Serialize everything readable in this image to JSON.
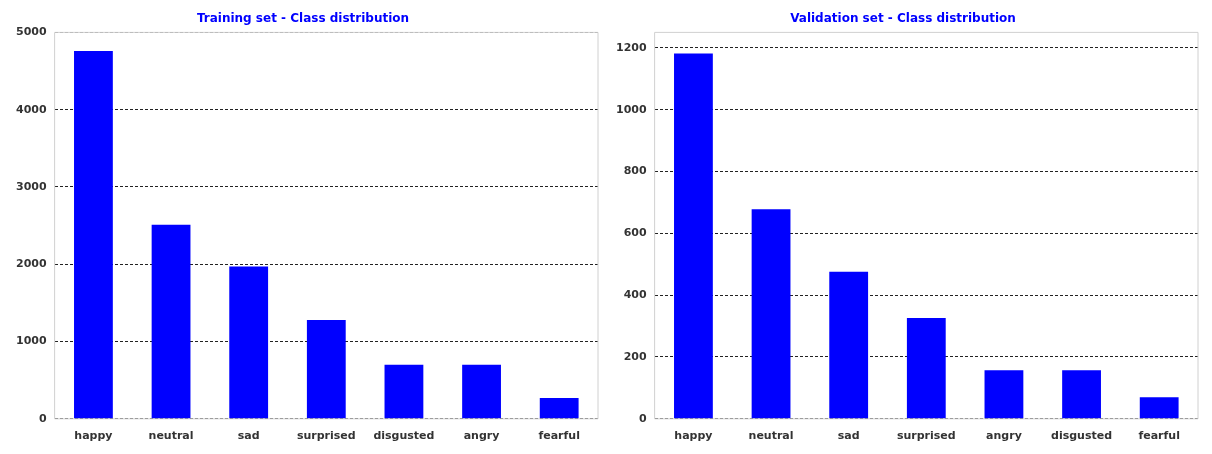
{
  "chart_data": [
    {
      "type": "bar",
      "title": "Training set - Class distribution",
      "categories": [
        "happy",
        "neutral",
        "sad",
        "surprised",
        "disgusted",
        "angry",
        "fearful"
      ],
      "values": [
        4760,
        2510,
        1970,
        1280,
        700,
        700,
        270
      ],
      "color": "#0000ff",
      "ylim": [
        0,
        5000
      ],
      "yticks": [
        0,
        1000,
        2000,
        3000,
        4000,
        5000
      ],
      "grid": "y",
      "legend": false
    },
    {
      "type": "bar",
      "title": "Validation set - Class distribution",
      "categories": [
        "happy",
        "neutral",
        "sad",
        "surprised",
        "angry",
        "disgusted",
        "fearful"
      ],
      "values": [
        1182,
        678,
        476,
        326,
        157,
        157,
        70
      ],
      "color": "#0000ff",
      "ylim": [
        0,
        1250
      ],
      "yticks": [
        0,
        200,
        400,
        600,
        800,
        1000,
        1200
      ],
      "grid": "y",
      "legend": false
    }
  ]
}
